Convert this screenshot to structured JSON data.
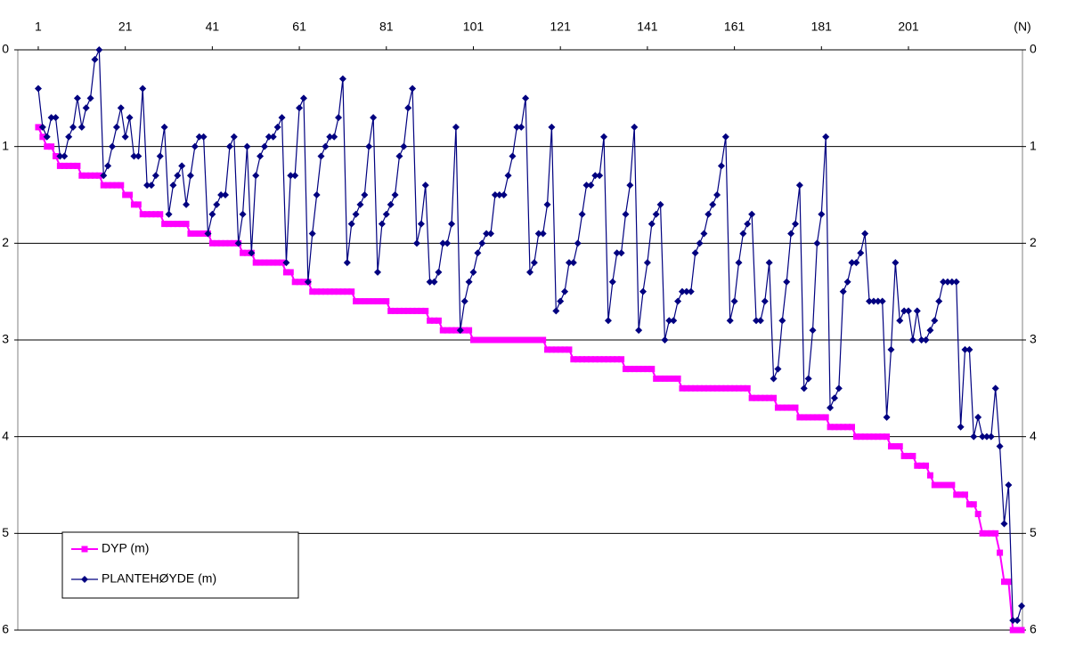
{
  "chart_data": {
    "type": "line",
    "x_label": "(N)",
    "xlim": [
      -3.7,
      227.2
    ],
    "xticks": [
      1,
      21,
      41,
      61,
      81,
      101,
      121,
      141,
      161,
      181,
      201
    ],
    "ylim": [
      0,
      6
    ],
    "yticks": [
      0,
      1,
      2,
      3,
      4,
      5,
      6
    ],
    "y_inverted": true,
    "y_ticks_both_sides": true,
    "grid": true,
    "legend": "lower left",
    "x": [
      1,
      2,
      3,
      4,
      5,
      6,
      7,
      8,
      9,
      10,
      11,
      12,
      13,
      14,
      15,
      16,
      17,
      18,
      19,
      20,
      21,
      22,
      23,
      24,
      25,
      26,
      27,
      28,
      29,
      30,
      31,
      32,
      33,
      34,
      35,
      36,
      37,
      38,
      39,
      40,
      41,
      42,
      43,
      44,
      45,
      46,
      47,
      48,
      49,
      50,
      51,
      52,
      53,
      54,
      55,
      56,
      57,
      58,
      59,
      60,
      61,
      62,
      63,
      64,
      65,
      66,
      67,
      68,
      69,
      70,
      71,
      72,
      73,
      74,
      75,
      76,
      77,
      78,
      79,
      80,
      81,
      82,
      83,
      84,
      85,
      86,
      87,
      88,
      89,
      90,
      91,
      92,
      93,
      94,
      95,
      96,
      97,
      98,
      99,
      100,
      101,
      102,
      103,
      104,
      105,
      106,
      107,
      108,
      109,
      110,
      111,
      112,
      113,
      114,
      115,
      116,
      117,
      118,
      119,
      120,
      121,
      122,
      123,
      124,
      125,
      126,
      127,
      128,
      129,
      130,
      131,
      132,
      133,
      134,
      135,
      136,
      137,
      138,
      139,
      140,
      141,
      142,
      143,
      144,
      145,
      146,
      147,
      148,
      149,
      150,
      151,
      152,
      153,
      154,
      155,
      156,
      157,
      158,
      159,
      160,
      161,
      162,
      163,
      164,
      165,
      166,
      167,
      168,
      169,
      170,
      171,
      172,
      173,
      174,
      175,
      176,
      177,
      178,
      179,
      180,
      181,
      182,
      183,
      184,
      185,
      186,
      187,
      188,
      189,
      190,
      191,
      192,
      193,
      194,
      195,
      196,
      197,
      198,
      199,
      200,
      201,
      202,
      203,
      204,
      205,
      206,
      207,
      208,
      209,
      210,
      211,
      212,
      213,
      214,
      215,
      216,
      217,
      218,
      219,
      220,
      221,
      222,
      223,
      224,
      225,
      226,
      227
    ],
    "series": [
      {
        "name": "DYP (m)",
        "color": "#ff00ff",
        "marker": "square",
        "values": [
          0.8,
          0.9,
          1.0,
          1.0,
          1.1,
          1.2,
          1.2,
          1.2,
          1.2,
          1.2,
          1.3,
          1.3,
          1.3,
          1.3,
          1.3,
          1.4,
          1.4,
          1.4,
          1.4,
          1.4,
          1.5,
          1.5,
          1.6,
          1.6,
          1.7,
          1.7,
          1.7,
          1.7,
          1.7,
          1.8,
          1.8,
          1.8,
          1.8,
          1.8,
          1.8,
          1.9,
          1.9,
          1.9,
          1.9,
          1.9,
          2.0,
          2.0,
          2.0,
          2.0,
          2.0,
          2.0,
          2.0,
          2.1,
          2.1,
          2.1,
          2.2,
          2.2,
          2.2,
          2.2,
          2.2,
          2.2,
          2.2,
          2.3,
          2.3,
          2.4,
          2.4,
          2.4,
          2.4,
          2.5,
          2.5,
          2.5,
          2.5,
          2.5,
          2.5,
          2.5,
          2.5,
          2.5,
          2.5,
          2.6,
          2.6,
          2.6,
          2.6,
          2.6,
          2.6,
          2.6,
          2.6,
          2.7,
          2.7,
          2.7,
          2.7,
          2.7,
          2.7,
          2.7,
          2.7,
          2.7,
          2.8,
          2.8,
          2.8,
          2.9,
          2.9,
          2.9,
          2.9,
          2.9,
          2.9,
          2.9,
          3.0,
          3.0,
          3.0,
          3.0,
          3.0,
          3.0,
          3.0,
          3.0,
          3.0,
          3.0,
          3.0,
          3.0,
          3.0,
          3.0,
          3.0,
          3.0,
          3.0,
          3.1,
          3.1,
          3.1,
          3.1,
          3.1,
          3.1,
          3.2,
          3.2,
          3.2,
          3.2,
          3.2,
          3.2,
          3.2,
          3.2,
          3.2,
          3.2,
          3.2,
          3.2,
          3.3,
          3.3,
          3.3,
          3.3,
          3.3,
          3.3,
          3.3,
          3.4,
          3.4,
          3.4,
          3.4,
          3.4,
          3.4,
          3.5,
          3.5,
          3.5,
          3.5,
          3.5,
          3.5,
          3.5,
          3.5,
          3.5,
          3.5,
          3.5,
          3.5,
          3.5,
          3.5,
          3.5,
          3.5,
          3.6,
          3.6,
          3.6,
          3.6,
          3.6,
          3.6,
          3.7,
          3.7,
          3.7,
          3.7,
          3.7,
          3.8,
          3.8,
          3.8,
          3.8,
          3.8,
          3.8,
          3.8,
          3.9,
          3.9,
          3.9,
          3.9,
          3.9,
          3.9,
          4.0,
          4.0,
          4.0,
          4.0,
          4.0,
          4.0,
          4.0,
          4.0,
          4.1,
          4.1,
          4.1,
          4.2,
          4.2,
          4.2,
          4.3,
          4.3,
          4.3,
          4.4,
          4.5,
          4.5,
          4.5,
          4.5,
          4.5,
          4.6,
          4.6,
          4.6,
          4.7,
          4.7,
          4.8,
          5.0,
          5.0,
          5.0,
          5.0,
          5.2,
          5.5,
          5.5,
          6.0,
          6.0,
          6.0
        ]
      },
      {
        "name": "PLANTEHØYDE (m)",
        "color": "#000080",
        "marker": "diamond",
        "values": [
          0.4,
          0.8,
          0.9,
          0.7,
          0.7,
          1.1,
          1.1,
          0.9,
          0.8,
          0.5,
          0.8,
          0.6,
          0.5,
          0.1,
          0.0,
          1.3,
          1.2,
          1.0,
          0.8,
          0.6,
          0.9,
          0.7,
          1.1,
          1.1,
          0.4,
          1.4,
          1.4,
          1.3,
          1.1,
          0.8,
          1.7,
          1.4,
          1.3,
          1.2,
          1.6,
          1.3,
          1.0,
          0.9,
          0.9,
          1.9,
          1.7,
          1.6,
          1.5,
          1.5,
          1.0,
          0.9,
          2.0,
          1.7,
          1.0,
          2.1,
          1.3,
          1.1,
          1.0,
          0.9,
          0.9,
          0.8,
          0.7,
          2.2,
          1.3,
          1.3,
          0.6,
          0.5,
          2.4,
          1.9,
          1.5,
          1.1,
          1.0,
          0.9,
          0.9,
          0.7,
          0.3,
          2.2,
          1.8,
          1.7,
          1.6,
          1.5,
          1.0,
          0.7,
          2.3,
          1.8,
          1.7,
          1.6,
          1.5,
          1.1,
          1.0,
          0.6,
          0.4,
          2.0,
          1.8,
          1.4,
          2.4,
          2.4,
          2.3,
          2.0,
          2.0,
          1.8,
          0.8,
          2.9,
          2.6,
          2.4,
          2.3,
          2.1,
          2.0,
          1.9,
          1.9,
          1.5,
          1.5,
          1.5,
          1.3,
          1.1,
          0.8,
          0.8,
          0.5,
          2.3,
          2.2,
          1.9,
          1.9,
          1.6,
          0.8,
          2.7,
          2.6,
          2.5,
          2.2,
          2.2,
          2.0,
          1.7,
          1.4,
          1.4,
          1.3,
          1.3,
          0.9,
          2.8,
          2.4,
          2.1,
          2.1,
          1.7,
          1.4,
          0.8,
          2.9,
          2.5,
          2.2,
          1.8,
          1.7,
          1.6,
          3.0,
          2.8,
          2.8,
          2.6,
          2.5,
          2.5,
          2.5,
          2.1,
          2.0,
          1.9,
          1.7,
          1.6,
          1.5,
          1.2,
          0.9,
          2.8,
          2.6,
          2.2,
          1.9,
          1.8,
          1.7,
          2.8,
          2.8,
          2.6,
          2.2,
          3.4,
          3.3,
          2.8,
          2.4,
          1.9,
          1.8,
          1.4,
          3.5,
          3.4,
          2.9,
          2.0,
          1.7,
          0.9,
          3.7,
          3.6,
          3.5,
          2.5,
          2.4,
          2.2,
          2.2,
          2.1,
          1.9,
          2.6,
          2.6,
          2.6,
          2.6,
          3.8,
          3.1,
          2.2,
          2.8,
          2.7,
          2.7,
          3.0,
          2.7,
          3.0,
          3.0,
          2.9,
          2.8,
          2.6,
          2.4,
          2.4,
          2.4,
          2.4,
          3.9,
          3.1,
          3.1,
          4.0,
          3.8,
          4.0,
          4.0,
          4.0,
          3.5,
          4.1,
          4.9,
          4.5,
          5.9,
          5.9,
          5.75
        ]
      }
    ]
  }
}
